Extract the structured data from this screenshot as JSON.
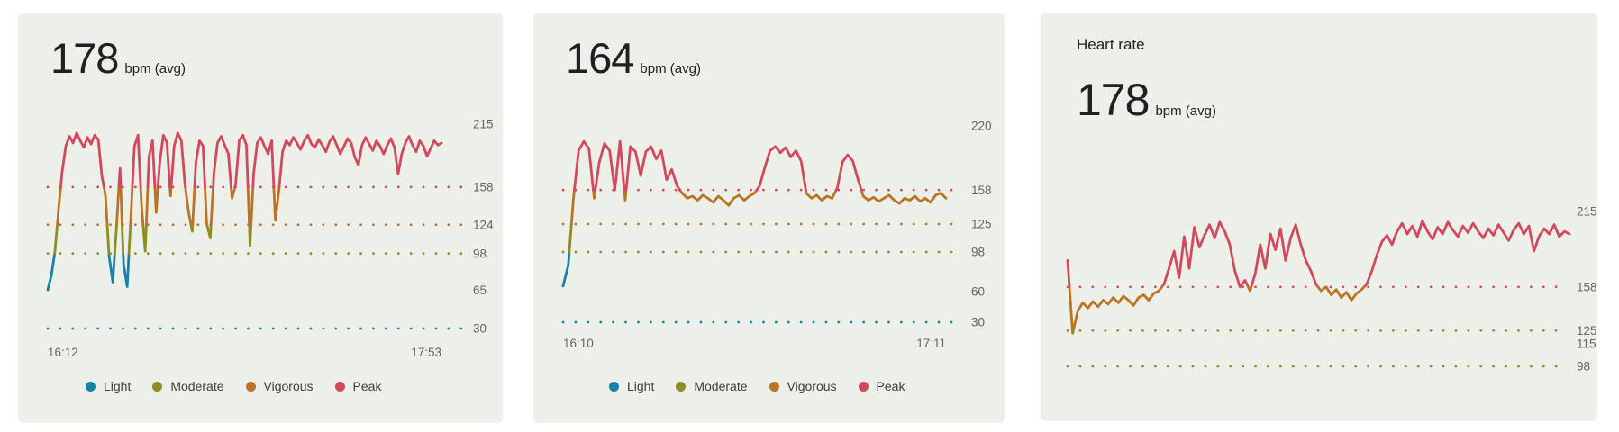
{
  "page": {
    "background": "#ffffff",
    "card_background": "#edefe9"
  },
  "zone_colors": {
    "light": "#1782a8",
    "moderate": "#8e8c22",
    "vigorous": "#bb7425",
    "peak": "#d1495c"
  },
  "chart_data": [
    {
      "type": "line",
      "title": "",
      "avg": "178",
      "unit": "bpm (avg)",
      "xlabel": "",
      "ylabel": "",
      "ylim": [
        30,
        215
      ],
      "x_range": [
        "16:12",
        "17:53"
      ],
      "grid": "dotted-horizontal",
      "legend_position": "bottom",
      "y_ticks": [
        {
          "label": "215",
          "value": 215,
          "line": false,
          "line_color": ""
        },
        {
          "label": "158",
          "value": 158,
          "line": true,
          "line_color": "#d1495c"
        },
        {
          "label": "124",
          "value": 124,
          "line": true,
          "line_color": "#bb7425"
        },
        {
          "label": "98",
          "value": 98,
          "line": true,
          "line_color": "#8e8c22"
        },
        {
          "label": "65",
          "value": 65,
          "line": false,
          "line_color": ""
        },
        {
          "label": "30",
          "value": 30,
          "line": true,
          "line_color": "#1782a8"
        }
      ],
      "zones": [
        {
          "name": "Light",
          "max": 98,
          "color": "#1782a8"
        },
        {
          "name": "Moderate",
          "max": 124,
          "color": "#8e8c22"
        },
        {
          "name": "Vigorous",
          "max": 158,
          "color": "#bb7425"
        },
        {
          "name": "Peak",
          "max": 230,
          "color": "#d1495c"
        }
      ],
      "legend": [
        {
          "label": "Light",
          "color": "#1782a8"
        },
        {
          "label": "Moderate",
          "color": "#8e8c22"
        },
        {
          "label": "Vigorous",
          "color": "#bb7425"
        },
        {
          "label": "Peak",
          "color": "#d1495c"
        }
      ],
      "series": [
        {
          "name": "heart_rate_bpm",
          "values": [
            65,
            78,
            100,
            138,
            172,
            195,
            204,
            198,
            207,
            200,
            194,
            203,
            197,
            205,
            201,
            168,
            150,
            95,
            72,
            120,
            175,
            88,
            68,
            130,
            195,
            205,
            140,
            100,
            185,
            200,
            135,
            180,
            205,
            198,
            150,
            195,
            207,
            200,
            160,
            135,
            118,
            180,
            200,
            195,
            125,
            112,
            170,
            198,
            204,
            196,
            188,
            148,
            160,
            200,
            205,
            196,
            105,
            170,
            198,
            203,
            195,
            188,
            200,
            128,
            155,
            190,
            200,
            196,
            203,
            198,
            192,
            200,
            205,
            197,
            194,
            201,
            196,
            190,
            199,
            204,
            196,
            188,
            195,
            202,
            198,
            185,
            178,
            196,
            203,
            197,
            191,
            200,
            195,
            188,
            196,
            202,
            194,
            170,
            188,
            198,
            204,
            196,
            190,
            200,
            195,
            186,
            193,
            200,
            196,
            198
          ]
        }
      ]
    },
    {
      "type": "line",
      "title": "",
      "avg": "164",
      "unit": "bpm (avg)",
      "xlabel": "",
      "ylabel": "",
      "ylim": [
        30,
        220
      ],
      "x_range": [
        "16:10",
        "17:11"
      ],
      "grid": "dotted-horizontal",
      "legend_position": "bottom",
      "y_ticks": [
        {
          "label": "220",
          "value": 220,
          "line": false,
          "line_color": ""
        },
        {
          "label": "158",
          "value": 158,
          "line": true,
          "line_color": "#d1495c"
        },
        {
          "label": "125",
          "value": 125,
          "line": true,
          "line_color": "#bb7425"
        },
        {
          "label": "98",
          "value": 98,
          "line": true,
          "line_color": "#8e8c22"
        },
        {
          "label": "60",
          "value": 60,
          "line": false,
          "line_color": ""
        },
        {
          "label": "30",
          "value": 30,
          "line": true,
          "line_color": "#1782a8"
        }
      ],
      "zones": [
        {
          "name": "Light",
          "max": 98,
          "color": "#1782a8"
        },
        {
          "name": "Moderate",
          "max": 125,
          "color": "#8e8c22"
        },
        {
          "name": "Vigorous",
          "max": 158,
          "color": "#bb7425"
        },
        {
          "name": "Peak",
          "max": 230,
          "color": "#d1495c"
        }
      ],
      "legend": [
        {
          "label": "Light",
          "color": "#1782a8"
        },
        {
          "label": "Moderate",
          "color": "#8e8c22"
        },
        {
          "label": "Vigorous",
          "color": "#bb7425"
        },
        {
          "label": "Peak",
          "color": "#d1495c"
        }
      ],
      "series": [
        {
          "name": "heart_rate_bpm",
          "values": [
            65,
            85,
            150,
            196,
            205,
            198,
            150,
            185,
            203,
            196,
            158,
            205,
            148,
            200,
            195,
            172,
            195,
            200,
            188,
            196,
            168,
            178,
            162,
            155,
            150,
            152,
            148,
            153,
            150,
            146,
            152,
            148,
            143,
            150,
            153,
            148,
            152,
            155,
            162,
            180,
            196,
            200,
            194,
            199,
            190,
            196,
            186,
            155,
            150,
            153,
            148,
            152,
            150,
            160,
            185,
            192,
            186,
            168,
            152,
            148,
            151,
            147,
            150,
            153,
            148,
            145,
            150,
            148,
            152,
            147,
            150,
            146,
            153,
            155,
            150
          ]
        }
      ]
    },
    {
      "type": "line",
      "title": "Heart rate",
      "avg": "178",
      "unit": "bpm (avg)",
      "xlabel": "",
      "ylabel": "",
      "ylim": [
        98,
        215
      ],
      "x_range": [],
      "grid": "dotted-horizontal",
      "legend_position": "none",
      "y_ticks": [
        {
          "label": "215",
          "value": 215,
          "line": false,
          "line_color": ""
        },
        {
          "label": "158",
          "value": 158,
          "line": true,
          "line_color": "#d1495c"
        },
        {
          "label": "125",
          "value": 125,
          "line": true,
          "line_color": "#bb7425"
        },
        {
          "label": "115",
          "value": 115,
          "line": false,
          "line_color": ""
        },
        {
          "label": "98",
          "value": 98,
          "line": true,
          "line_color": "#8e8c22"
        }
      ],
      "zones": [
        {
          "name": "Light",
          "max": 98,
          "color": "#1782a8"
        },
        {
          "name": "Moderate",
          "max": 125,
          "color": "#8e8c22"
        },
        {
          "name": "Vigorous",
          "max": 158,
          "color": "#bb7425"
        },
        {
          "name": "Peak",
          "max": 230,
          "color": "#d1495c"
        }
      ],
      "legend": [],
      "series": [
        {
          "name": "heart_rate_bpm",
          "values": [
            178,
            123,
            140,
            146,
            142,
            147,
            143,
            148,
            145,
            150,
            146,
            151,
            148,
            144,
            150,
            152,
            148,
            153,
            155,
            160,
            172,
            185,
            165,
            196,
            172,
            203,
            188,
            197,
            205,
            195,
            207,
            200,
            190,
            170,
            158,
            163,
            155,
            168,
            190,
            172,
            198,
            186,
            202,
            178,
            195,
            205,
            190,
            178,
            170,
            160,
            155,
            158,
            152,
            156,
            150,
            154,
            148,
            153,
            156,
            160,
            170,
            182,
            192,
            197,
            190,
            200,
            206,
            198,
            204,
            196,
            208,
            200,
            194,
            203,
            198,
            207,
            201,
            196,
            204,
            199,
            206,
            200,
            195,
            202,
            197,
            205,
            199,
            193,
            201,
            206,
            198,
            204,
            185,
            196,
            202,
            198,
            205,
            196,
            200,
            198
          ]
        }
      ]
    }
  ]
}
